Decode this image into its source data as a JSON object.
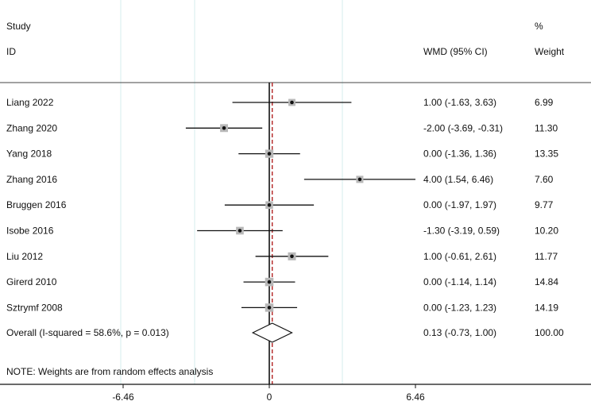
{
  "chart_data": {
    "type": "forest",
    "header": {
      "study_label": "Study",
      "id_label": "ID",
      "effect_label": "WMD (95% CI)",
      "pct_label": "%",
      "weight_label": "Weight"
    },
    "studies": [
      {
        "id": "Liang 2022",
        "estimate": 1.0,
        "lower": -1.63,
        "upper": 3.63,
        "ci_text": "1.00 (-1.63, 3.63)",
        "weight": "6.99"
      },
      {
        "id": "Zhang 2020",
        "estimate": -2.0,
        "lower": -3.69,
        "upper": -0.31,
        "ci_text": "-2.00 (-3.69, -0.31)",
        "weight": "11.30"
      },
      {
        "id": "Yang 2018",
        "estimate": 0.0,
        "lower": -1.36,
        "upper": 1.36,
        "ci_text": "0.00 (-1.36, 1.36)",
        "weight": "13.35"
      },
      {
        "id": "Zhang 2016",
        "estimate": 4.0,
        "lower": 1.54,
        "upper": 6.46,
        "ci_text": "4.00 (1.54, 6.46)",
        "weight": "7.60"
      },
      {
        "id": "Bruggen 2016",
        "estimate": 0.0,
        "lower": -1.97,
        "upper": 1.97,
        "ci_text": "0.00 (-1.97, 1.97)",
        "weight": "9.77"
      },
      {
        "id": "Isobe 2016",
        "estimate": -1.3,
        "lower": -3.19,
        "upper": 0.59,
        "ci_text": "-1.30 (-3.19, 0.59)",
        "weight": "10.20"
      },
      {
        "id": "Liu 2012",
        "estimate": 1.0,
        "lower": -0.61,
        "upper": 2.61,
        "ci_text": "1.00 (-0.61, 2.61)",
        "weight": "11.77"
      },
      {
        "id": "Girerd 2010",
        "estimate": 0.0,
        "lower": -1.14,
        "upper": 1.14,
        "ci_text": "0.00 (-1.14, 1.14)",
        "weight": "14.84"
      },
      {
        "id": "Sztrymf 2008",
        "estimate": 0.0,
        "lower": -1.23,
        "upper": 1.23,
        "ci_text": "0.00 (-1.23, 1.23)",
        "weight": "14.19"
      }
    ],
    "overall": {
      "label": "Overall  (I-squared = 58.6%, p = 0.013)",
      "estimate": 0.13,
      "lower": -0.73,
      "upper": 1.0,
      "ci_text": "0.13 (-0.73, 1.00)",
      "weight": "100.00"
    },
    "note": "NOTE: Weights are from random effects analysis",
    "x_ticks": [
      -6.46,
      0,
      6.46
    ],
    "x_tick_labels": [
      "-6.46",
      "0",
      "6.46"
    ],
    "xlim": [
      -6.46,
      6.46
    ],
    "null_line": 0,
    "colors": {
      "grid": "#d6ecec",
      "line": "#111111",
      "box": "#b8b8b8",
      "overall_line": "#b22222"
    }
  }
}
